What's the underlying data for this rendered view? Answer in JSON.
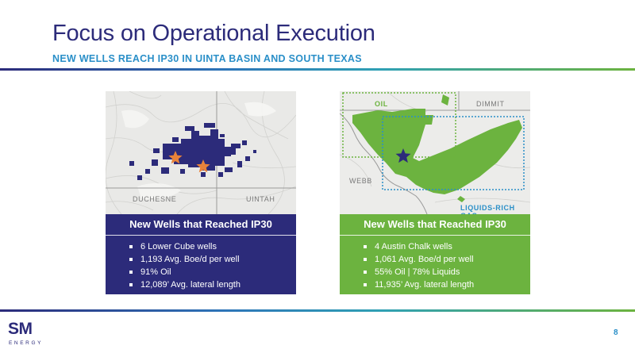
{
  "header": {
    "title": "Focus on Operational Execution",
    "subtitle": "NEW WELLS REACH IP30 IN UINTA BASIN AND SOUTH TEXAS"
  },
  "colors": {
    "navy": "#2c2b7a",
    "green": "#6cb33f",
    "blue": "#2a8fc8",
    "orange": "#e8823a"
  },
  "left_panel": {
    "map_labels": {
      "west": "DUCHESNE",
      "east": "UINTAH"
    },
    "card": {
      "title": "New Wells that Reached IP30",
      "bullets": [
        "6 Lower Cube wells",
        "1,193 Avg. Boe/d per well",
        "91% Oil",
        "12,089’ Avg. lateral length"
      ]
    }
  },
  "right_panel": {
    "map_labels": {
      "oil": "OIL",
      "north_east": "DIMMIT",
      "west": "WEBB",
      "gas": "LIQUIDS-RICH GAS"
    },
    "card": {
      "title": "New Wells that Reached IP30",
      "bullets": [
        "4 Austin Chalk wells",
        "1,061 Avg. Boe/d per well",
        "55% Oil | 78% Liquids",
        "11,935’ Avg. lateral length"
      ]
    }
  },
  "footer": {
    "logo_main": "SM",
    "logo_sub": "ENERGY",
    "page_number": "8"
  }
}
